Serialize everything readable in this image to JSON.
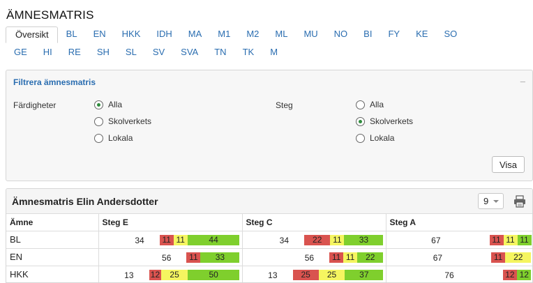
{
  "page": {
    "title": "ÄMNESMATRIS"
  },
  "tabs": {
    "row1": [
      "Översikt",
      "BL",
      "EN",
      "HKK",
      "IDH",
      "MA",
      "M1",
      "M2",
      "ML",
      "MU",
      "NO",
      "BI",
      "FY",
      "KE",
      "SO"
    ],
    "row2": [
      "GE",
      "HI",
      "RE",
      "SH",
      "SL",
      "SV",
      "SVA",
      "TN",
      "TK",
      "M"
    ],
    "active": "Översikt"
  },
  "filter": {
    "title": "Filtrera ämnesmatris",
    "collapse_symbol": "–",
    "skills_label": "Färdigheter",
    "skills_options": [
      "Alla",
      "Skolverkets",
      "Lokala"
    ],
    "skills_selected": "Alla",
    "steps_label": "Steg",
    "steps_options": [
      "Alla",
      "Skolverkets",
      "Lokala"
    ],
    "steps_selected": "Skolverkets",
    "show_button": "Visa"
  },
  "matrix": {
    "title": "Ämnesmatris Elin Andersdotter",
    "page_size": "9",
    "columns": [
      "Ämne",
      "Steg E",
      "Steg C",
      "Steg A"
    ],
    "rows": [
      {
        "subject": "BL",
        "cells": [
          {
            "total": "34",
            "segments": [
              [
                "red",
                "11"
              ],
              [
                "yellow",
                "11"
              ],
              [
                "green",
                "44"
              ]
            ]
          },
          {
            "total": "34",
            "segments": [
              [
                "red",
                "22"
              ],
              [
                "yellow",
                "11"
              ],
              [
                "green",
                "33"
              ]
            ]
          },
          {
            "total": "67",
            "segments": [
              [
                "red",
                "11"
              ],
              [
                "yellow",
                "11"
              ],
              [
                "green",
                "11"
              ]
            ]
          }
        ]
      },
      {
        "subject": "EN",
        "cells": [
          {
            "total": "56",
            "segments": [
              [
                "red",
                "11"
              ],
              [
                "green",
                "33"
              ]
            ]
          },
          {
            "total": "56",
            "segments": [
              [
                "red",
                "11"
              ],
              [
                "yellow",
                "11"
              ],
              [
                "green",
                "22"
              ]
            ]
          },
          {
            "total": "67",
            "segments": [
              [
                "red",
                "11"
              ],
              [
                "yellow",
                "22"
              ]
            ]
          }
        ]
      },
      {
        "subject": "HKK",
        "cells": [
          {
            "total": "13",
            "segments": [
              [
                "red",
                "12"
              ],
              [
                "yellow",
                "25"
              ],
              [
                "green",
                "50"
              ]
            ]
          },
          {
            "total": "13",
            "segments": [
              [
                "red",
                "25"
              ],
              [
                "yellow",
                "25"
              ],
              [
                "green",
                "37"
              ]
            ]
          },
          {
            "total": "76",
            "segments": [
              [
                "red",
                "12"
              ],
              [
                "green",
                "12"
              ]
            ]
          }
        ]
      }
    ]
  },
  "colors": {
    "red": "#d9534f",
    "yellow": "#f5f560",
    "green": "#7fcf2d",
    "link": "#2a6db0"
  },
  "icons": {
    "print": "printer-icon",
    "collapse": "minus-icon",
    "dropdown": "caret-down-icon"
  }
}
